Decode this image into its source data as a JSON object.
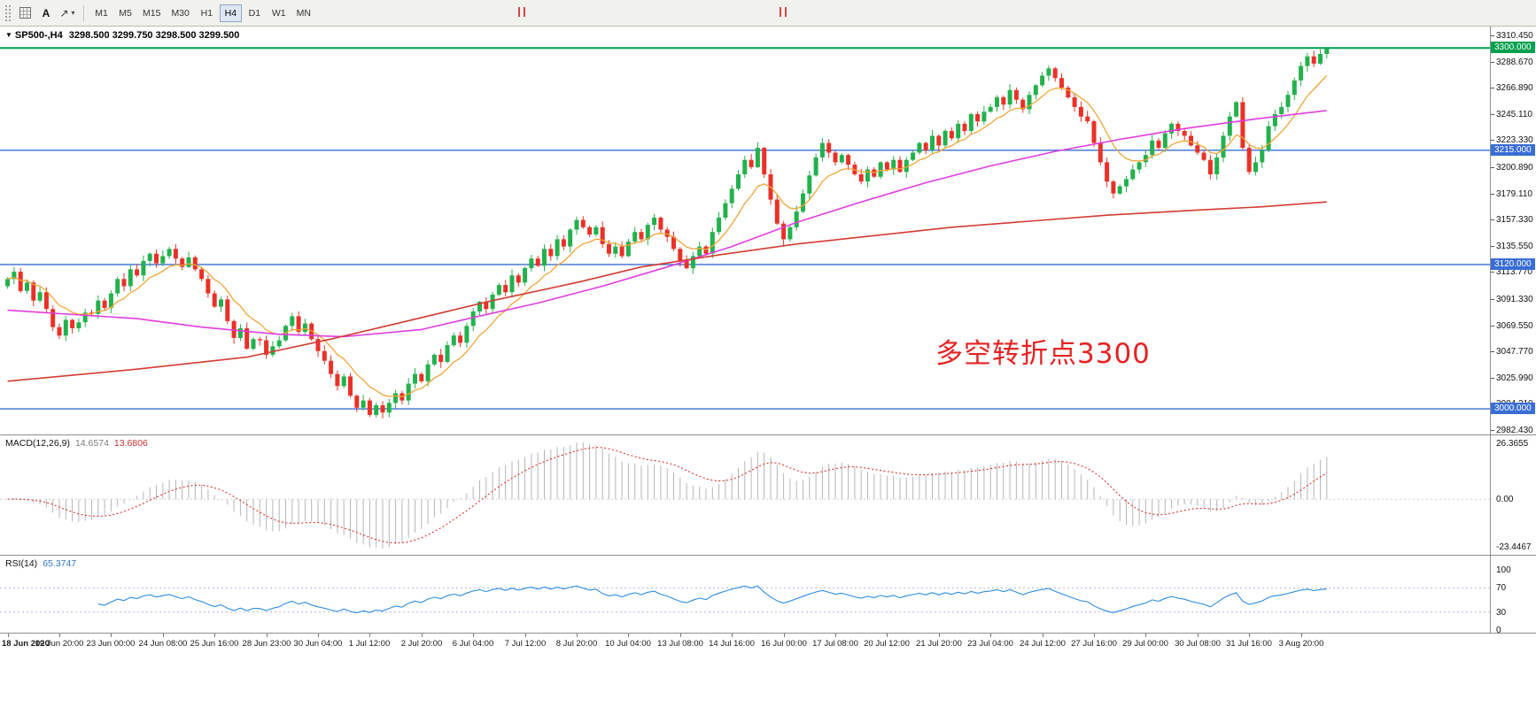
{
  "toolbar": {
    "cursor_label": "A",
    "arrow_glyph": "↗",
    "dropdown_glyph": "▾",
    "timeframes": [
      {
        "label": "M1",
        "active": false
      },
      {
        "label": "M5",
        "active": false
      },
      {
        "label": "M15",
        "active": false
      },
      {
        "label": "M30",
        "active": false
      },
      {
        "label": "H1",
        "active": false
      },
      {
        "label": "H4",
        "active": true
      },
      {
        "label": "D1",
        "active": false
      },
      {
        "label": "W1",
        "active": false
      },
      {
        "label": "MN",
        "active": false
      }
    ]
  },
  "chart_header": {
    "collapse_glyph": "▼",
    "symbol": "SP500-,H4",
    "ohlc": "3298.500 3299.750 3298.500 3299.500"
  },
  "annotation": {
    "text": "多空转折点3300",
    "color": "#e62222"
  },
  "indicators": {
    "macd": {
      "label": "MACD(12,26,9)",
      "value_main": "14.6574",
      "value_signal": "13.6806",
      "scale": {
        "top": "26.3655",
        "zero": "0.00",
        "bottom": "-23.4467"
      },
      "params": {
        "fast": 12,
        "slow": 26,
        "signal": 9
      },
      "colors": {
        "histogram": "#b6b6b6",
        "signal": "#dd2c2c"
      }
    },
    "rsi": {
      "label": "RSI(14)",
      "value": "65.3747",
      "period": 14,
      "scale_labels": [
        "100",
        "70",
        "30",
        "0"
      ],
      "levels": [
        70,
        30
      ],
      "color": "#2a8ce2"
    }
  },
  "chart_data": {
    "type": "candlestick",
    "symbol": "SP500-",
    "timeframe": "H4",
    "ohlc_current": {
      "open": 3298.5,
      "high": 3299.75,
      "low": 3298.5,
      "close": 3299.5
    },
    "price_range": {
      "max": 3310.45,
      "min": 2982.43
    },
    "price_ticks": [
      {
        "label": "3310.450",
        "value": 3310.45
      },
      {
        "label": "3288.670",
        "value": 3288.67
      },
      {
        "label": "3266.890",
        "value": 3266.89
      },
      {
        "label": "3245.110",
        "value": 3245.11
      },
      {
        "label": "3223.330",
        "value": 3223.33
      },
      {
        "label": "3200.890",
        "value": 3200.89
      },
      {
        "label": "3179.110",
        "value": 3179.11
      },
      {
        "label": "3157.330",
        "value": 3157.33
      },
      {
        "label": "3135.550",
        "value": 3135.55
      },
      {
        "label": "3113.770",
        "value": 3113.77
      },
      {
        "label": "3091.330",
        "value": 3091.33
      },
      {
        "label": "3069.550",
        "value": 3069.55
      },
      {
        "label": "3047.770",
        "value": 3047.77
      },
      {
        "label": "3025.990",
        "value": 3025.99
      },
      {
        "label": "3004.210",
        "value": 3004.21
      },
      {
        "label": "2982.430",
        "value": 2982.43
      }
    ],
    "horizontal_lines": [
      {
        "value": 3300,
        "label": "3300.000",
        "color": "#00a04e"
      },
      {
        "value": 3215,
        "label": "3215.000",
        "color": "#3a6ed6"
      },
      {
        "value": 3120,
        "label": "3120.000",
        "color": "#3a6ed6"
      },
      {
        "value": 3000,
        "label": "3000.000",
        "color": "#3a6ed6"
      }
    ],
    "time_labels": [
      "18 Jun 2020",
      "19 Jun 20:00",
      "23 Jun 00:00",
      "24 Jun 08:00",
      "25 Jun 16:00",
      "28 Jun 23:00",
      "30 Jun 04:00",
      "1 Jul 12:00",
      "2 Jul 20:00",
      "6 Jul 04:00",
      "7 Jul 12:00",
      "8 Jul 20:00",
      "10 Jul 04:00",
      "13 Jul 08:00",
      "14 Jul 16:00",
      "16 Jul 00:00",
      "17 Jul 08:00",
      "20 Jul 12:00",
      "21 Jul 20:00",
      "23 Jul 04:00",
      "24 Jul 12:00",
      "27 Jul 16:00",
      "29 Jul 00:00",
      "30 Jul 08:00",
      "31 Jul 16:00",
      "3 Aug 20:00"
    ],
    "candles_per_label": 8,
    "closes": [
      3108,
      3114,
      3098,
      3105,
      3090,
      3097,
      3083,
      3068,
      3061,
      3074,
      3067,
      3072,
      3080,
      3079,
      3090,
      3084,
      3096,
      3108,
      3102,
      3116,
      3111,
      3123,
      3129,
      3121,
      3127,
      3133,
      3125,
      3118,
      3126,
      3116,
      3108,
      3096,
      3085,
      3091,
      3073,
      3059,
      3067,
      3050,
      3058,
      3057,
      3045,
      3052,
      3057,
      3069,
      3077,
      3064,
      3071,
      3058,
      3048,
      3040,
      3029,
      3019,
      3027,
      3011,
      3001,
      3007,
      2995,
      3003,
      2997,
      3005,
      3013,
      3007,
      3021,
      3029,
      3023,
      3037,
      3045,
      3039,
      3053,
      3061,
      3055,
      3069,
      3081,
      3089,
      3083,
      3095,
      3103,
      3097,
      3111,
      3105,
      3117,
      3125,
      3119,
      3133,
      3127,
      3141,
      3135,
      3149,
      3157,
      3151,
      3145,
      3151,
      3137,
      3129,
      3135,
      3127,
      3139,
      3147,
      3141,
      3153,
      3159,
      3149,
      3143,
      3133,
      3123,
      3117,
      3127,
      3135,
      3129,
      3147,
      3159,
      3171,
      3183,
      3195,
      3207,
      3201,
      3217,
      3195,
      3174,
      3154,
      3141,
      3151,
      3164,
      3179,
      3194,
      3209,
      3221,
      3213,
      3205,
      3211,
      3203,
      3195,
      3189,
      3199,
      3193,
      3205,
      3199,
      3207,
      3197,
      3207,
      3213,
      3221,
      3215,
      3227,
      3219,
      3231,
      3225,
      3237,
      3231,
      3245,
      3239,
      3247,
      3251,
      3259,
      3253,
      3265,
      3257,
      3249,
      3261,
      3269,
      3277,
      3283,
      3275,
      3267,
      3259,
      3251,
      3243,
      3239,
      3221,
      3205,
      3189,
      3179,
      3185,
      3191,
      3199,
      3205,
      3211,
      3223,
      3217,
      3229,
      3237,
      3231,
      3227,
      3219,
      3213,
      3207,
      3195,
      3209,
      3227,
      3243,
      3255,
      3217,
      3197,
      3205,
      3215,
      3235,
      3245,
      3251,
      3261,
      3273,
      3285,
      3293,
      3287,
      3295,
      3299.5
    ],
    "moving_averages": [
      {
        "name": "fast",
        "type": "ema",
        "period": 9,
        "color": "#efa537"
      },
      {
        "name": "mid",
        "color": "#e03ce0",
        "anchors": [
          [
            0,
            3082
          ],
          [
            20,
            3075
          ],
          [
            30,
            3068
          ],
          [
            42,
            3062
          ],
          [
            52,
            3060
          ],
          [
            64,
            3066
          ],
          [
            72,
            3076
          ],
          [
            82,
            3088
          ],
          [
            92,
            3102
          ],
          [
            102,
            3118
          ],
          [
            112,
            3135
          ],
          [
            122,
            3155
          ],
          [
            132,
            3172
          ],
          [
            142,
            3188
          ],
          [
            152,
            3202
          ],
          [
            162,
            3214
          ],
          [
            172,
            3224
          ],
          [
            182,
            3233
          ],
          [
            193,
            3241
          ],
          [
            204,
            3248
          ]
        ]
      },
      {
        "name": "slow",
        "color": "#d23b32",
        "anchors": [
          [
            0,
            3023
          ],
          [
            20,
            3033
          ],
          [
            37,
            3043
          ],
          [
            50,
            3058
          ],
          [
            61,
            3072
          ],
          [
            75,
            3090
          ],
          [
            88,
            3105
          ],
          [
            98,
            3118
          ],
          [
            110,
            3128
          ],
          [
            122,
            3137
          ],
          [
            134,
            3144
          ],
          [
            146,
            3151
          ],
          [
            158,
            3156
          ],
          [
            170,
            3161
          ],
          [
            183,
            3165
          ],
          [
            194,
            3168
          ],
          [
            204,
            3172
          ]
        ]
      }
    ],
    "candle_colors": {
      "up": "#23b14d",
      "down": "#e93128"
    }
  }
}
